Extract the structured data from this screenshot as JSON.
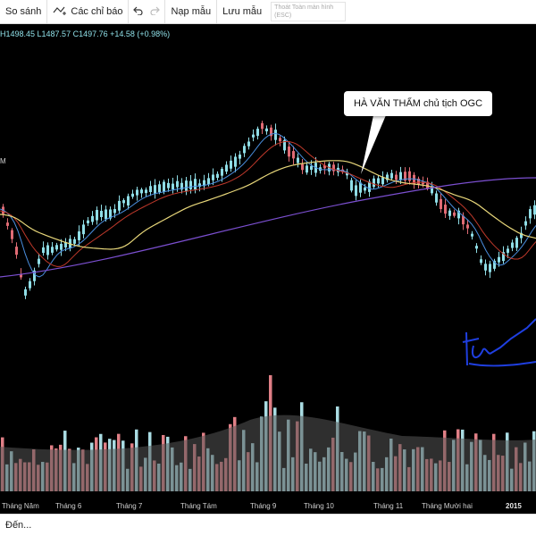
{
  "toolbar": {
    "compare_label": "So sánh",
    "indicators_label": "Các chỉ báo",
    "undo_icon": "undo-icon",
    "redo_icon": "redo-icon",
    "load_template_label": "Nạp mẫu",
    "save_template_label": "Lưu mẫu",
    "fullscreen_hint": "Thoát Toàn màn hình (ESC)"
  },
  "chart": {
    "ohlc_text": "H1498.45  L1487.57  C1497.76  +14.58 (+0.98%)",
    "volume_unit_label": "M",
    "callout_text": "HÀ VĂN THẨM chủ tịch OGC",
    "colors": {
      "background": "#000000",
      "up": "#8fdde6",
      "down": "#e06b74",
      "ma_fast": "#4a8fe0",
      "ma_mid": "#c0392b",
      "ma_slow": "#e8d77a",
      "ma_long": "#7b4fd0",
      "signature": "#1f3fe0",
      "volume_up": "#a9dbe2",
      "volume_down": "#e07f86",
      "volume_ma": "#555555"
    }
  },
  "x_axis": {
    "labels": [
      "Tháng Năm",
      "Tháng 6",
      "Tháng 7",
      "Tháng Tám",
      "Tháng 9",
      "Tháng 10",
      "Tháng 11",
      "Tháng Mười hai",
      "2015"
    ]
  },
  "footer": {
    "goto_label": "Đến..."
  }
}
